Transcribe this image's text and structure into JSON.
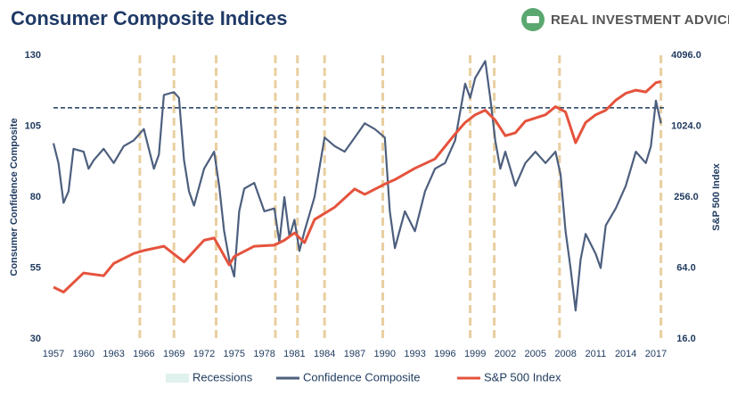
{
  "header": {
    "logo": "REAL INVESTMENT ADVICE"
  },
  "chart_data": {
    "type": "line",
    "title": "Consumer Composite Indices",
    "ylabel": "Consumer Confidence Composite",
    "y2label": "S&P 500 Index",
    "xlim": [
      1957,
      2017.8
    ],
    "xticks": [
      1957,
      1960,
      1963,
      1966,
      1969,
      1972,
      1975,
      1978,
      1981,
      1984,
      1987,
      1990,
      1993,
      1996,
      1999,
      2002,
      2005,
      2008,
      2011,
      2014,
      2017
    ],
    "ylim": [
      30,
      130
    ],
    "yticks": [
      30,
      55,
      80,
      105,
      130
    ],
    "y2lim": [
      16,
      4096
    ],
    "y2scale": "log",
    "y2ticks": [
      {
        "value": 16,
        "label": "16.0"
      },
      {
        "value": 64,
        "label": "64.0"
      },
      {
        "value": 256,
        "label": "256.0"
      },
      {
        "value": 1024,
        "label": "1024.0"
      },
      {
        "value": 4096,
        "label": "4096.0"
      }
    ],
    "recessions": {
      "name": "Recessions",
      "color": "#e8cfa0",
      "legend_color": "#e0f1ee",
      "x": [
        1965.6,
        1969.0,
        1973.2,
        1979.1,
        1981.3,
        1984.0,
        1989.8,
        1998.5,
        2000.9,
        2007.4,
        2017.5
      ]
    },
    "reference_line": {
      "value": 111.5,
      "color": "#1f3a5f"
    },
    "series": [
      {
        "name": "Confidence Composite",
        "color": "#4d5f7e",
        "axis": "y",
        "x": [
          1957,
          1957.5,
          1958,
          1958.5,
          1959,
          1960,
          1960.5,
          1961,
          1962,
          1963,
          1964,
          1965,
          1966,
          1966.5,
          1967,
          1967.5,
          1968,
          1969,
          1969.5,
          1970,
          1970.5,
          1971,
          1972,
          1973,
          1973.5,
          1974,
          1974.5,
          1975,
          1975.5,
          1976,
          1977,
          1978,
          1979,
          1979.5,
          1980,
          1980.5,
          1981,
          1981.5,
          1982,
          1983,
          1984,
          1985,
          1986,
          1987,
          1988,
          1989,
          1990,
          1990.5,
          1991,
          1992,
          1993,
          1994,
          1995,
          1996,
          1997,
          1998,
          1998.5,
          1999,
          2000,
          2000.5,
          2001,
          2001.5,
          2002,
          2003,
          2004,
          2005,
          2006,
          2007,
          2007.5,
          2008,
          2008.5,
          2009,
          2009.5,
          2010,
          2011,
          2011.5,
          2012,
          2013,
          2014,
          2015,
          2016,
          2016.5,
          2017,
          2017.5
        ],
        "values": [
          99,
          92,
          78,
          82,
          97,
          96,
          90,
          93,
          97,
          92,
          98,
          100,
          104,
          97,
          90,
          95,
          116,
          117,
          115,
          93,
          82,
          77,
          90,
          96,
          84,
          68,
          58,
          52,
          75,
          83,
          85,
          75,
          76,
          64,
          80,
          66,
          72,
          61,
          68,
          80,
          101,
          98,
          96,
          101,
          106,
          104,
          101,
          75,
          62,
          75,
          68,
          82,
          90,
          92,
          100,
          120,
          115,
          122,
          128,
          115,
          100,
          90,
          96,
          84,
          92,
          96,
          92,
          96,
          88,
          68,
          55,
          40,
          58,
          67,
          60,
          55,
          70,
          76,
          84,
          96,
          92,
          98,
          114,
          106
        ]
      },
      {
        "name": "S&P 500 Index",
        "color": "#e5533d",
        "axis": "y2",
        "x": [
          1957,
          1958,
          1960,
          1962,
          1963,
          1965,
          1966,
          1968,
          1970,
          1972,
          1973,
          1974.5,
          1975,
          1977,
          1979,
          1980,
          1981,
          1982,
          1983,
          1985,
          1987,
          1988,
          1990,
          1991,
          1993,
          1995,
          1997,
          1998,
          1999,
          2000,
          2001,
          2002,
          2003,
          2004,
          2006,
          2007,
          2008,
          2009,
          2010,
          2011,
          2012,
          2013,
          2014,
          2015,
          2016,
          2017,
          2017.5
        ],
        "values": [
          44,
          40,
          58,
          55,
          70,
          85,
          90,
          98,
          72,
          110,
          115,
          68,
          80,
          98,
          100,
          110,
          127,
          105,
          165,
          210,
          300,
          270,
          330,
          360,
          450,
          540,
          880,
          1100,
          1280,
          1400,
          1150,
          850,
          900,
          1130,
          1280,
          1500,
          1350,
          740,
          1100,
          1280,
          1400,
          1700,
          1950,
          2070,
          2000,
          2400,
          2450
        ]
      }
    ]
  }
}
